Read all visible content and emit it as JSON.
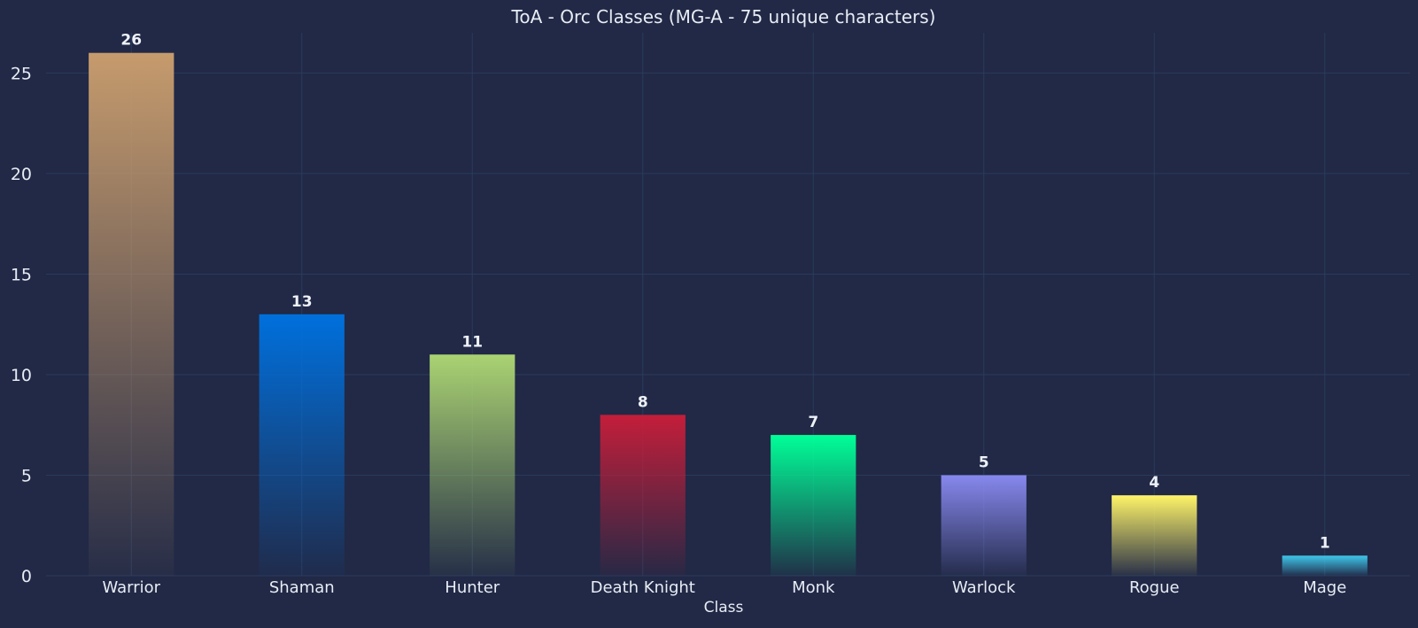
{
  "chart_data": {
    "type": "bar",
    "title": "ToA - Orc Classes (MG-A - 75 unique characters)",
    "xlabel": "Class",
    "ylabel": "",
    "categories": [
      "Warrior",
      "Shaman",
      "Hunter",
      "Death Knight",
      "Monk",
      "Warlock",
      "Rogue",
      "Mage"
    ],
    "values": [
      26,
      13,
      11,
      8,
      7,
      5,
      4,
      1
    ],
    "value_labels": [
      "26",
      "13",
      "11",
      "8",
      "7",
      "5",
      "4",
      "1"
    ],
    "colors": [
      "#C69B6D",
      "#0070DD",
      "#AAD372",
      "#C41E3A",
      "#00FF98",
      "#8788EE",
      "#FFF468",
      "#3FC7EB"
    ],
    "ylim": [
      0,
      27
    ],
    "yticks": [
      0,
      5,
      10,
      15,
      20,
      25
    ],
    "ytick_labels": [
      "0",
      "5",
      "10",
      "15",
      "20",
      "25"
    ],
    "grid": true,
    "bar_style": "vertical gradient fading to background",
    "background": "#212946",
    "grid_color": "#2a3b5c",
    "text_color": "#e8ecf4"
  }
}
